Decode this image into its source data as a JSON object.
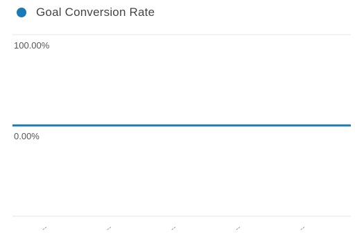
{
  "legend": {
    "label": "Goal Conversion Rate",
    "color": "#1a7ab8"
  },
  "chart_data": {
    "type": "line",
    "title": "",
    "xlabel": "",
    "ylabel": "",
    "ylim": [
      -1,
      1
    ],
    "yticks": [
      {
        "value": 1,
        "label": "100.00%"
      },
      {
        "value": 0,
        "label": "0.00%"
      }
    ],
    "categories": [
      "--",
      "--",
      "--",
      "--",
      "--"
    ],
    "series": [
      {
        "name": "Goal Conversion Rate",
        "color": "#1a7ab8",
        "values": [
          0,
          0,
          0,
          0,
          0
        ]
      }
    ],
    "grid": true,
    "legend_position": "top-left"
  }
}
